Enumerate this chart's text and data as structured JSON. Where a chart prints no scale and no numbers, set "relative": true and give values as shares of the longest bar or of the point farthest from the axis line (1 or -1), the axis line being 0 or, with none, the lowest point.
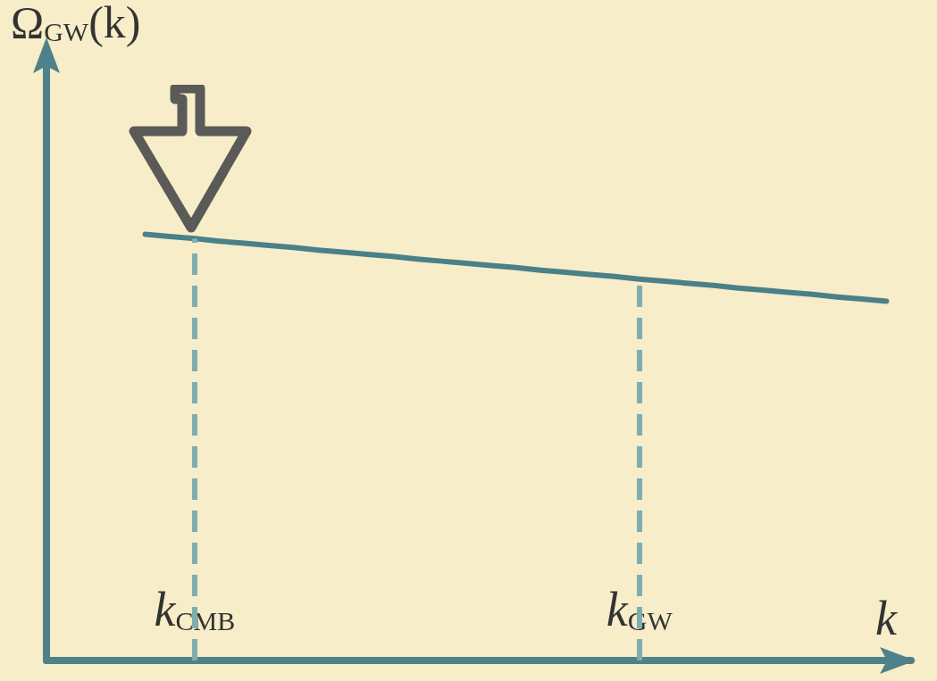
{
  "chart_data": {
    "type": "line",
    "relative": true,
    "ylabel": "Ω$_{GW}$(k)",
    "xlabel": "k",
    "tick_labels": "x",
    "grid": false,
    "marker": "none",
    "line_style": "solid",
    "categories": [
      null,
      null,
      null,
      null,
      null,
      null,
      "k$_{CMB}$",
      null,
      null,
      null,
      null,
      null,
      null,
      null,
      null,
      null,
      null,
      null,
      null,
      null,
      null,
      null,
      null,
      null,
      "k$_{GW}$",
      null,
      null,
      null,
      null,
      null,
      null,
      null,
      null,
      null,
      null,
      null
    ],
    "series": [
      {
        "color": "#4a8088",
        "values": [
          null,
          null,
          null,
          null,
          1,
          0.995,
          0.99,
          0.984,
          0.979,
          0.974,
          0.969,
          0.963,
          0.958,
          0.953,
          0.948,
          0.942,
          0.937,
          0.932,
          0.927,
          0.922,
          0.916,
          0.911,
          0.906,
          0.901,
          0.895,
          0.89,
          0.885,
          0.88,
          0.874,
          0.869,
          0.864,
          0.859,
          0.853,
          0.848,
          0.843,
          null
        ]
      }
    ],
    "ref_lines": [
      {
        "axis": "x",
        "value": "k$_{CMB}$",
        "color": "#7fadb0",
        "line_style": "dashed"
      },
      {
        "axis": "x",
        "value": "k$_{GW}$",
        "color": "#7fadb0",
        "line_style": "dashed"
      }
    ]
  }
}
